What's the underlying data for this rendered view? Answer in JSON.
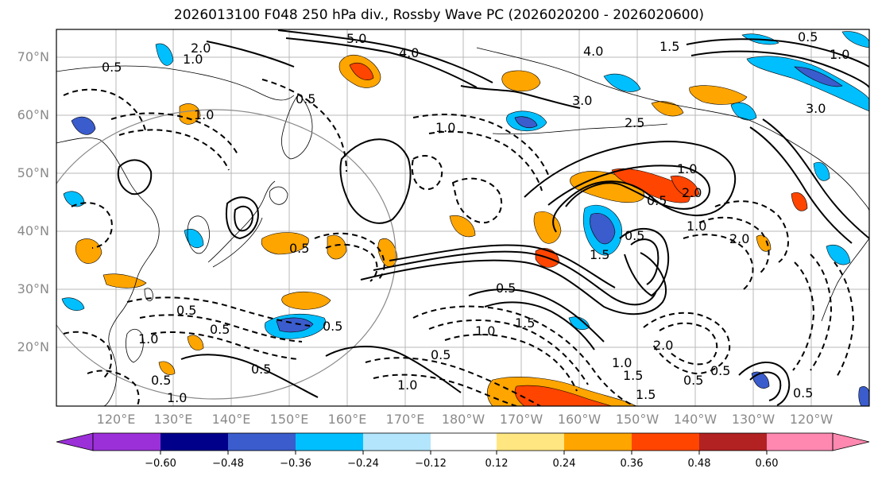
{
  "title": "2026013100 F048 250 hPa div., Rossby Wave PC (2026020200 - 2026020600)",
  "map": {
    "latitude_labels": [
      "70°N",
      "60°N",
      "50°N",
      "40°N",
      "30°N",
      "20°N"
    ],
    "longitude_labels": [
      "120°E",
      "130°E",
      "140°E",
      "150°E",
      "160°E",
      "170°E",
      "180°W",
      "170°W",
      "160°W",
      "150°W",
      "140°W",
      "130°W",
      "120°W"
    ],
    "contour_labels": [
      "0.5",
      "1.0",
      "1.5",
      "2.0",
      "2.5",
      "3.0",
      "4.0",
      "5.0"
    ],
    "colors": {
      "coastline": "#000000",
      "gridline": "#b8b8b8",
      "positive_contour": "#000000",
      "negative_contour": "#000000",
      "circle": "#888888"
    }
  },
  "colorbar": {
    "tick_labels": [
      "−0.60",
      "−0.48",
      "−0.36",
      "−0.24",
      "−0.12",
      "0.12",
      "0.24",
      "0.36",
      "0.48",
      "0.60"
    ],
    "colors": [
      "#9b30d8",
      "#00008b",
      "#3a5ccc",
      "#00bfff",
      "#b3e5fc",
      "#ffffff",
      "#ffe680",
      "#ffa500",
      "#ff4500",
      "#b22222",
      "#ff88b0"
    ]
  }
}
